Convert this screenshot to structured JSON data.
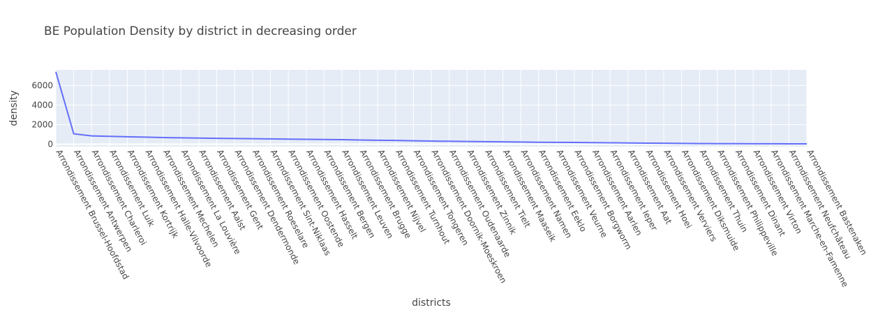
{
  "chart_data": {
    "type": "line",
    "title": "BE Population Density by district in decreasing order",
    "xlabel": "districts",
    "ylabel": "density",
    "ylim": [
      -250,
      7600
    ],
    "y_ticks": [
      0,
      2000,
      4000,
      6000
    ],
    "grid": true,
    "legend": "none",
    "colors": {
      "plot_background": "#e5ecf6",
      "grid": "#ffffff",
      "line": "#636efa",
      "text": "#444444"
    },
    "categories": [
      "Arrondissement Brussel-Hoofdstad",
      "Arrondissement Antwerpen",
      "Arrondissement Charleroi",
      "Arrondissement Luik",
      "Arrondissement Kortrijk",
      "Arrondissement Halle-Vilvoorde",
      "Arrondissement Mechelen",
      "Arrondissement La Louvière",
      "Arrondissement Aalst",
      "Arrondissement Gent",
      "Arrondissement Dendermonde",
      "Arrondissement Roeselare",
      "Arrondissement Sint-Niklaas",
      "Arrondissement Oostende",
      "Arrondissement Hasselt",
      "Arrondissement Bergen",
      "Arrondissement Leuven",
      "Arrondissement Brugge",
      "Arrondissement Nijvel",
      "Arrondissement Turnhout",
      "Arrondissement Tongeren",
      "Arrondissement Doornik-Moeskroen",
      "Arrondissement Oudenaarde",
      "Arrondissement Zinnik",
      "Arrondissement Tielt",
      "Arrondissement Maaseik",
      "Arrondissement Namen",
      "Arrondissement Eeklo",
      "Arrondissement Veurne",
      "Arrondissement Borgworm",
      "Arrondissement Aarlen",
      "Arrondissement Ieper",
      "Arrondissement Aat",
      "Arrondissement Hoei",
      "Arrondissement Verviers",
      "Arrondissement Diksmuide",
      "Arrondissement Thuin",
      "Arrondissement Philippeville",
      "Arrondissement Dinant",
      "Arrondissement Virton",
      "Arrondissement Marche-en-Famenne",
      "Arrondissement Neufchâteau",
      "Arrondissement Bastenaken"
    ],
    "series": [
      {
        "values": [
          7400,
          1060,
          850,
          800,
          760,
          720,
          680,
          650,
          620,
          600,
          580,
          560,
          540,
          520,
          500,
          480,
          460,
          430,
          400,
          380,
          350,
          320,
          300,
          280,
          260,
          240,
          220,
          200,
          190,
          180,
          160,
          140,
          125,
          110,
          95,
          80,
          65,
          55,
          50,
          45,
          42,
          38,
          35
        ]
      }
    ]
  }
}
